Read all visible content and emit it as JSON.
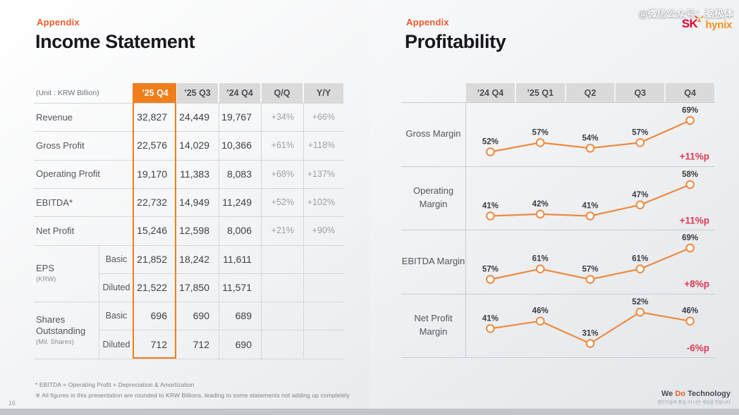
{
  "page_number": "16",
  "watermark": "@微信公众号：脑极体",
  "logo": {
    "sk": "SK",
    "hynix": "hynix"
  },
  "footer": {
    "we": "We ",
    "do": "Do",
    "technology": " Technology",
    "tagline": "첨단기술의 중심, 더 나은 세상을 만듭니다"
  },
  "left": {
    "eyebrow": "Appendix",
    "title": "Income Statement",
    "table": {
      "unit_label": "(Unit : KRW Billion)",
      "columns": [
        "’25 Q4",
        "’25 Q3",
        "’24 Q4",
        "Q/Q",
        "Y/Y"
      ],
      "highlight_column": "’25 Q4",
      "rows": [
        {
          "label": "Revenue",
          "values": [
            "32,827",
            "24,449",
            "19,767",
            "+34%",
            "+66%"
          ]
        },
        {
          "label": "Gross Profit",
          "values": [
            "22,576",
            "14,029",
            "10,366",
            "+61%",
            "+118%"
          ]
        },
        {
          "label": "Operating Profit",
          "values": [
            "19,170",
            "11,383",
            "8,083",
            "+68%",
            "+137%"
          ]
        },
        {
          "label": "EBITDA*",
          "values": [
            "22,732",
            "14,949",
            "11,249",
            "+52%",
            "+102%"
          ]
        },
        {
          "label": "Net Profit",
          "values": [
            "15,246",
            "12,598",
            "8,006",
            "+21%",
            "+90%"
          ]
        }
      ],
      "groups": [
        {
          "label": "EPS",
          "sublabel": "(KRW)",
          "rows": [
            {
              "sub": "Basic",
              "values": [
                "21,852",
                "18,242",
                "11,611",
                "",
                ""
              ]
            },
            {
              "sub": "Diluted",
              "values": [
                "21,522",
                "17,850",
                "11,571",
                "",
                ""
              ]
            }
          ]
        },
        {
          "label": "Shares Outstanding",
          "sublabel": "(Mil. Shares)",
          "rows": [
            {
              "sub": "Basic",
              "values": [
                "696",
                "690",
                "689",
                "",
                ""
              ]
            },
            {
              "sub": "Diluted",
              "values": [
                "712",
                "712",
                "690",
                "",
                ""
              ]
            }
          ]
        }
      ]
    },
    "footnotes": [
      "* EBITDA = Operating Profit + Depreciation & Amortization",
      "※ All figures in this presentation are rounded to KRW Billions, leading to some statements not adding up completely"
    ]
  },
  "right": {
    "eyebrow": "Appendix",
    "title": "Profitability"
  },
  "chart_data": {
    "type": "line",
    "categories": [
      "’24 Q4",
      "’25 Q1",
      "Q2",
      "Q3",
      "Q4"
    ],
    "series": [
      {
        "name": "Gross Margin",
        "values": [
          52,
          57,
          54,
          57,
          69
        ],
        "change": "+11%p"
      },
      {
        "name": "Operating Margin",
        "values": [
          41,
          42,
          41,
          47,
          58
        ],
        "change": "+11%p"
      },
      {
        "name": "EBITDA Margin",
        "values": [
          57,
          61,
          57,
          61,
          69
        ],
        "change": "+8%p"
      },
      {
        "name": "Net Profit Margin",
        "values": [
          41,
          46,
          31,
          52,
          46
        ],
        "change": "-6%p"
      }
    ],
    "unit": "%",
    "grid": false,
    "legend_position": "none",
    "value_labels": true
  },
  "colors": {
    "accent_orange": "#ef7f1c",
    "line_orange": "#ee8a40",
    "change_red": "#e23950",
    "header_gray": "#dadada",
    "eyebrow_orange": "#ee5a2d"
  }
}
